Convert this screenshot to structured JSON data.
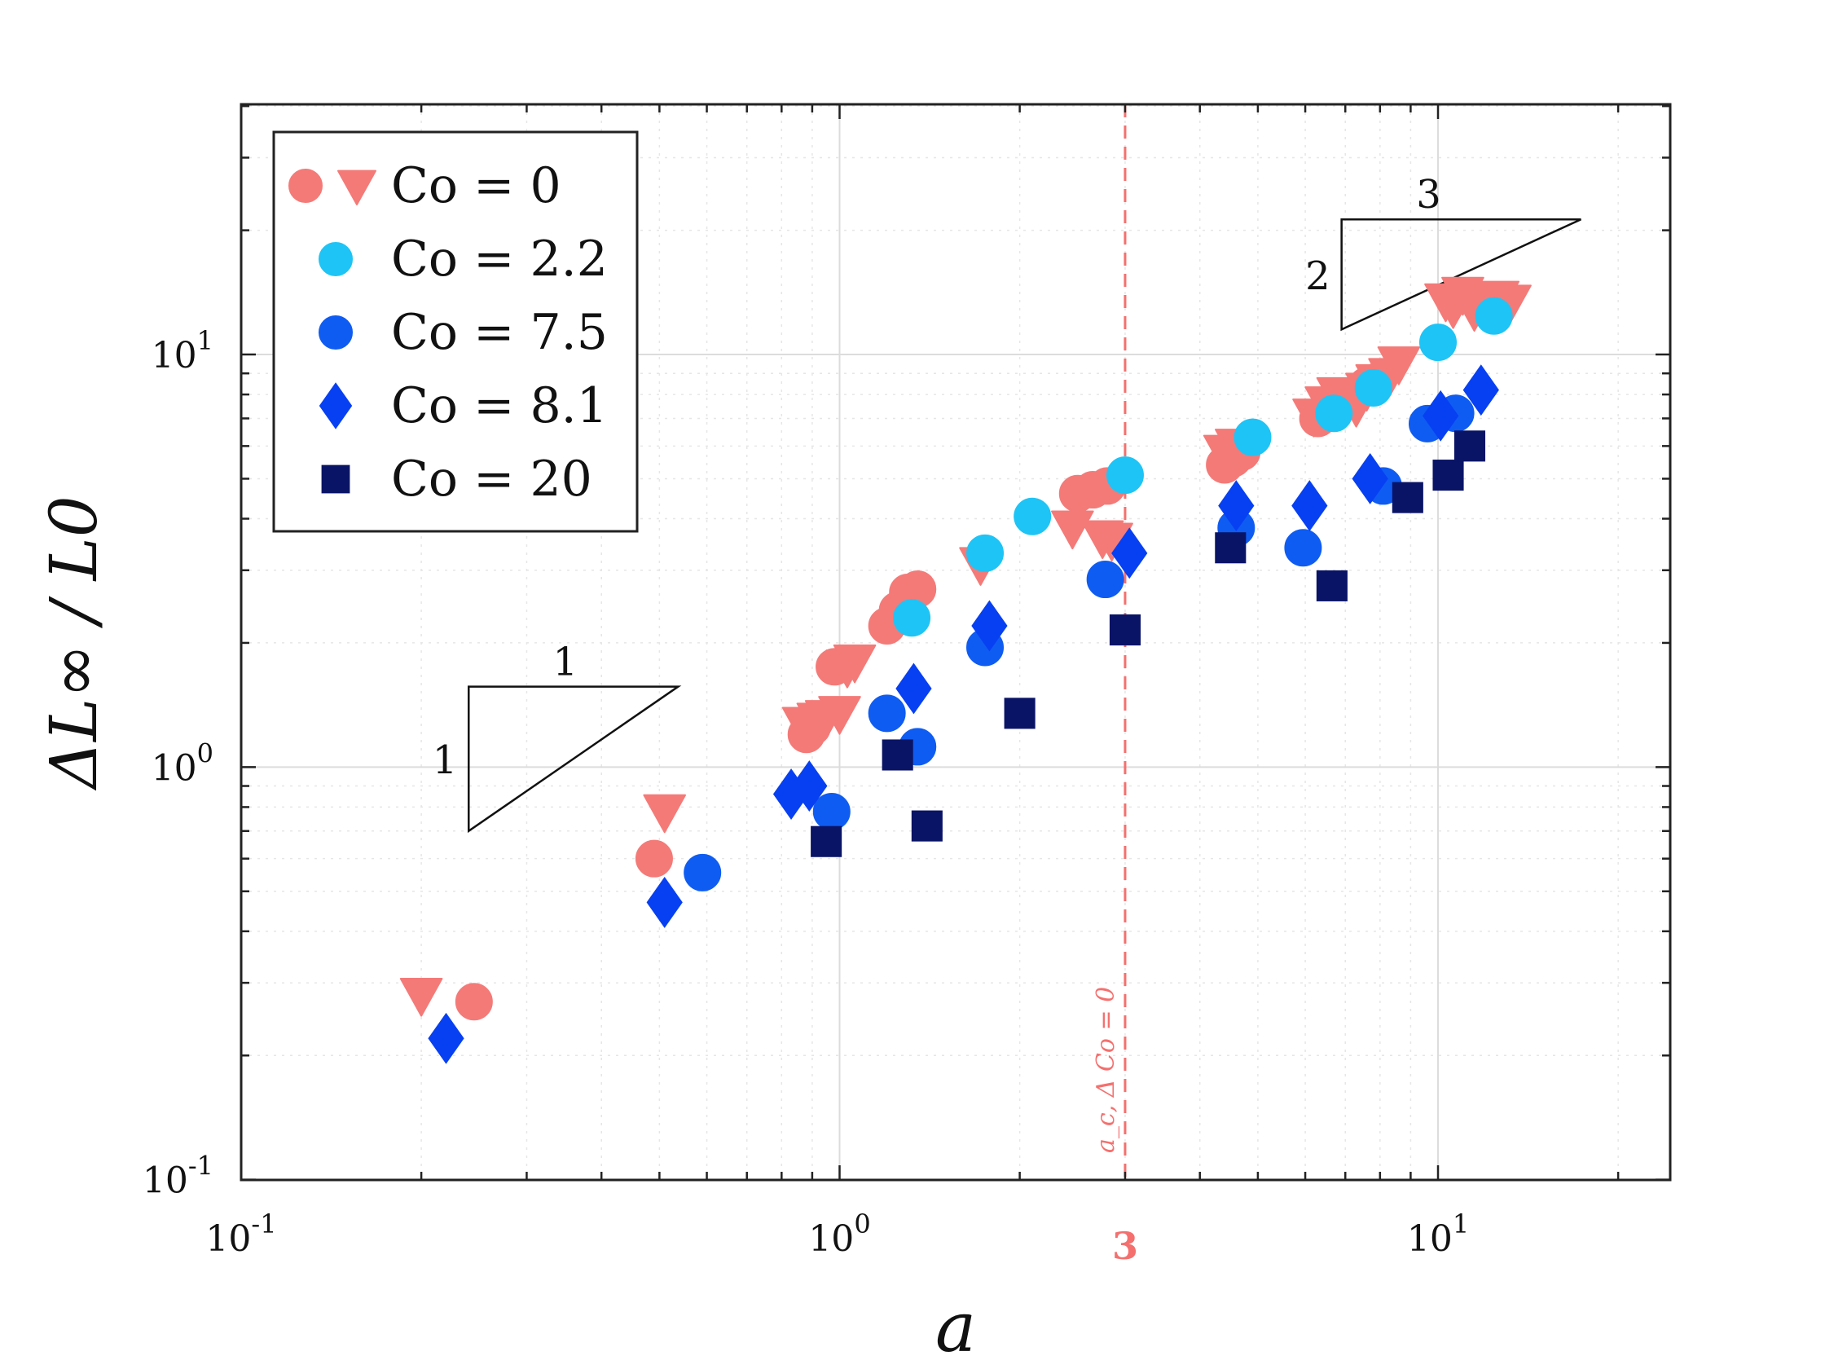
{
  "chart_data": {
    "type": "scatter",
    "xscale": "log",
    "yscale": "log",
    "xlim": [
      0.1,
      25
    ],
    "ylim": [
      0.1,
      40
    ],
    "xlabel": "a",
    "ylabel": "ΔL∞ / L0",
    "x_ticks": [
      {
        "value": 0.1,
        "base": "10",
        "exp": "-1"
      },
      {
        "value": 1,
        "base": "10",
        "exp": "0"
      },
      {
        "value": 10,
        "base": "10",
        "exp": "1"
      }
    ],
    "y_ticks": [
      {
        "value": 0.1,
        "base": "10",
        "exp": "-1"
      },
      {
        "value": 1,
        "base": "10",
        "exp": "0"
      },
      {
        "value": 10,
        "base": "10",
        "exp": "1"
      }
    ],
    "critical_line": {
      "x": 3,
      "tick_label": "3",
      "annotation": "a_c, Δ Co = 0",
      "color": "#f4706e"
    },
    "grid": true,
    "legend": {
      "position": "top-left",
      "entries": [
        {
          "label": "Co = 0",
          "color": "#f47a78",
          "markers": [
            "circle",
            "triangle-down"
          ]
        },
        {
          "label": "Co = 2.2",
          "color": "#1ec4f5",
          "markers": [
            "circle"
          ]
        },
        {
          "label": "Co = 7.5",
          "color": "#0f5cf2",
          "markers": [
            "circle"
          ]
        },
        {
          "label": "Co = 8.1",
          "color": "#0740f2",
          "markers": [
            "diamond"
          ]
        },
        {
          "label": "Co = 20",
          "color": "#0a1466",
          "markers": [
            "square"
          ]
        }
      ]
    },
    "slope_triangles": [
      {
        "run_label": "1",
        "rise_label": "1",
        "slope": 1,
        "anchor_a": 0.24,
        "anchor_y": 0.7,
        "decades": 0.35
      },
      {
        "run_label": "3",
        "rise_label": "2",
        "slope": 0.667,
        "anchor_a": 6.9,
        "anchor_y": 11.5,
        "decades": 0.4
      }
    ],
    "series": [
      {
        "name": "Co = 0 (circles)",
        "marker": "circle",
        "color": "#f47a78",
        "points": [
          [
            0.245,
            0.27
          ],
          [
            0.49,
            0.6
          ],
          [
            0.88,
            1.2
          ],
          [
            0.9,
            1.25
          ],
          [
            1.2,
            2.2
          ],
          [
            1.25,
            2.4
          ],
          [
            1.3,
            2.65
          ],
          [
            1.35,
            2.7
          ],
          [
            0.98,
            1.75
          ],
          [
            2.5,
            4.6
          ],
          [
            2.65,
            4.7
          ],
          [
            2.8,
            4.8
          ],
          [
            4.4,
            5.4
          ],
          [
            4.55,
            5.6
          ],
          [
            4.7,
            5.8
          ],
          [
            6.3,
            7.0
          ],
          [
            6.6,
            7.2
          ],
          [
            7.6,
            8.4
          ],
          [
            7.9,
            8.6
          ]
        ]
      },
      {
        "name": "Co = 0 (triangles)",
        "marker": "triangle-down",
        "color": "#f47a78",
        "points": [
          [
            0.2,
            0.28
          ],
          [
            0.51,
            0.78
          ],
          [
            0.87,
            1.27
          ],
          [
            0.92,
            1.3
          ],
          [
            0.95,
            1.32
          ],
          [
            1.0,
            1.35
          ],
          [
            1.03,
            1.75
          ],
          [
            1.06,
            1.8
          ],
          [
            1.72,
            3.1
          ],
          [
            2.45,
            3.8
          ],
          [
            2.75,
            3.6
          ],
          [
            2.85,
            3.55
          ],
          [
            4.4,
            5.8
          ],
          [
            4.6,
            6.0
          ],
          [
            6.2,
            7.1
          ],
          [
            6.5,
            7.6
          ],
          [
            6.8,
            8.0
          ],
          [
            7.3,
            7.5
          ],
          [
            7.6,
            8.2
          ],
          [
            7.9,
            8.6
          ],
          [
            8.3,
            8.9
          ],
          [
            8.6,
            9.5
          ],
          [
            10.3,
            13.5
          ],
          [
            10.6,
            13.0
          ],
          [
            11.0,
            14.0
          ],
          [
            11.5,
            12.8
          ],
          [
            12.0,
            13.3
          ],
          [
            12.6,
            13.7
          ],
          [
            13.2,
            13.4
          ]
        ]
      },
      {
        "name": "Co = 2.2",
        "marker": "circle",
        "color": "#1ec4f5",
        "points": [
          [
            1.32,
            2.3
          ],
          [
            1.75,
            3.3
          ],
          [
            2.1,
            4.05
          ],
          [
            3.0,
            5.1
          ],
          [
            4.9,
            6.3
          ],
          [
            6.7,
            7.2
          ],
          [
            7.8,
            8.3
          ],
          [
            10.0,
            10.7
          ],
          [
            12.4,
            12.4
          ]
        ]
      },
      {
        "name": "Co = 7.5",
        "marker": "circle",
        "color": "#0f5cf2",
        "points": [
          [
            0.59,
            0.555
          ],
          [
            0.97,
            0.78
          ],
          [
            1.2,
            1.35
          ],
          [
            1.35,
            1.12
          ],
          [
            1.75,
            1.95
          ],
          [
            2.78,
            2.85
          ],
          [
            4.6,
            3.8
          ],
          [
            5.95,
            3.4
          ],
          [
            8.1,
            4.8
          ],
          [
            9.6,
            6.8
          ],
          [
            10.7,
            7.2
          ]
        ]
      },
      {
        "name": "Co = 8.1",
        "marker": "diamond",
        "color": "#0740f2",
        "points": [
          [
            0.22,
            0.22
          ],
          [
            0.51,
            0.47
          ],
          [
            0.83,
            0.86
          ],
          [
            0.89,
            0.9
          ],
          [
            1.33,
            1.55
          ],
          [
            1.78,
            2.2
          ],
          [
            3.05,
            3.3
          ],
          [
            4.6,
            4.3
          ],
          [
            6.1,
            4.3
          ],
          [
            7.7,
            5.0
          ],
          [
            10.1,
            7.1
          ],
          [
            11.8,
            8.2
          ]
        ]
      },
      {
        "name": "Co = 20",
        "marker": "square",
        "color": "#0a1466",
        "points": [
          [
            0.95,
            0.66
          ],
          [
            1.25,
            1.07
          ],
          [
            1.4,
            0.72
          ],
          [
            2.0,
            1.35
          ],
          [
            3.0,
            2.15
          ],
          [
            4.5,
            3.4
          ],
          [
            6.65,
            2.75
          ],
          [
            8.9,
            4.5
          ],
          [
            10.4,
            5.1
          ],
          [
            11.3,
            6.0
          ]
        ]
      }
    ]
  }
}
